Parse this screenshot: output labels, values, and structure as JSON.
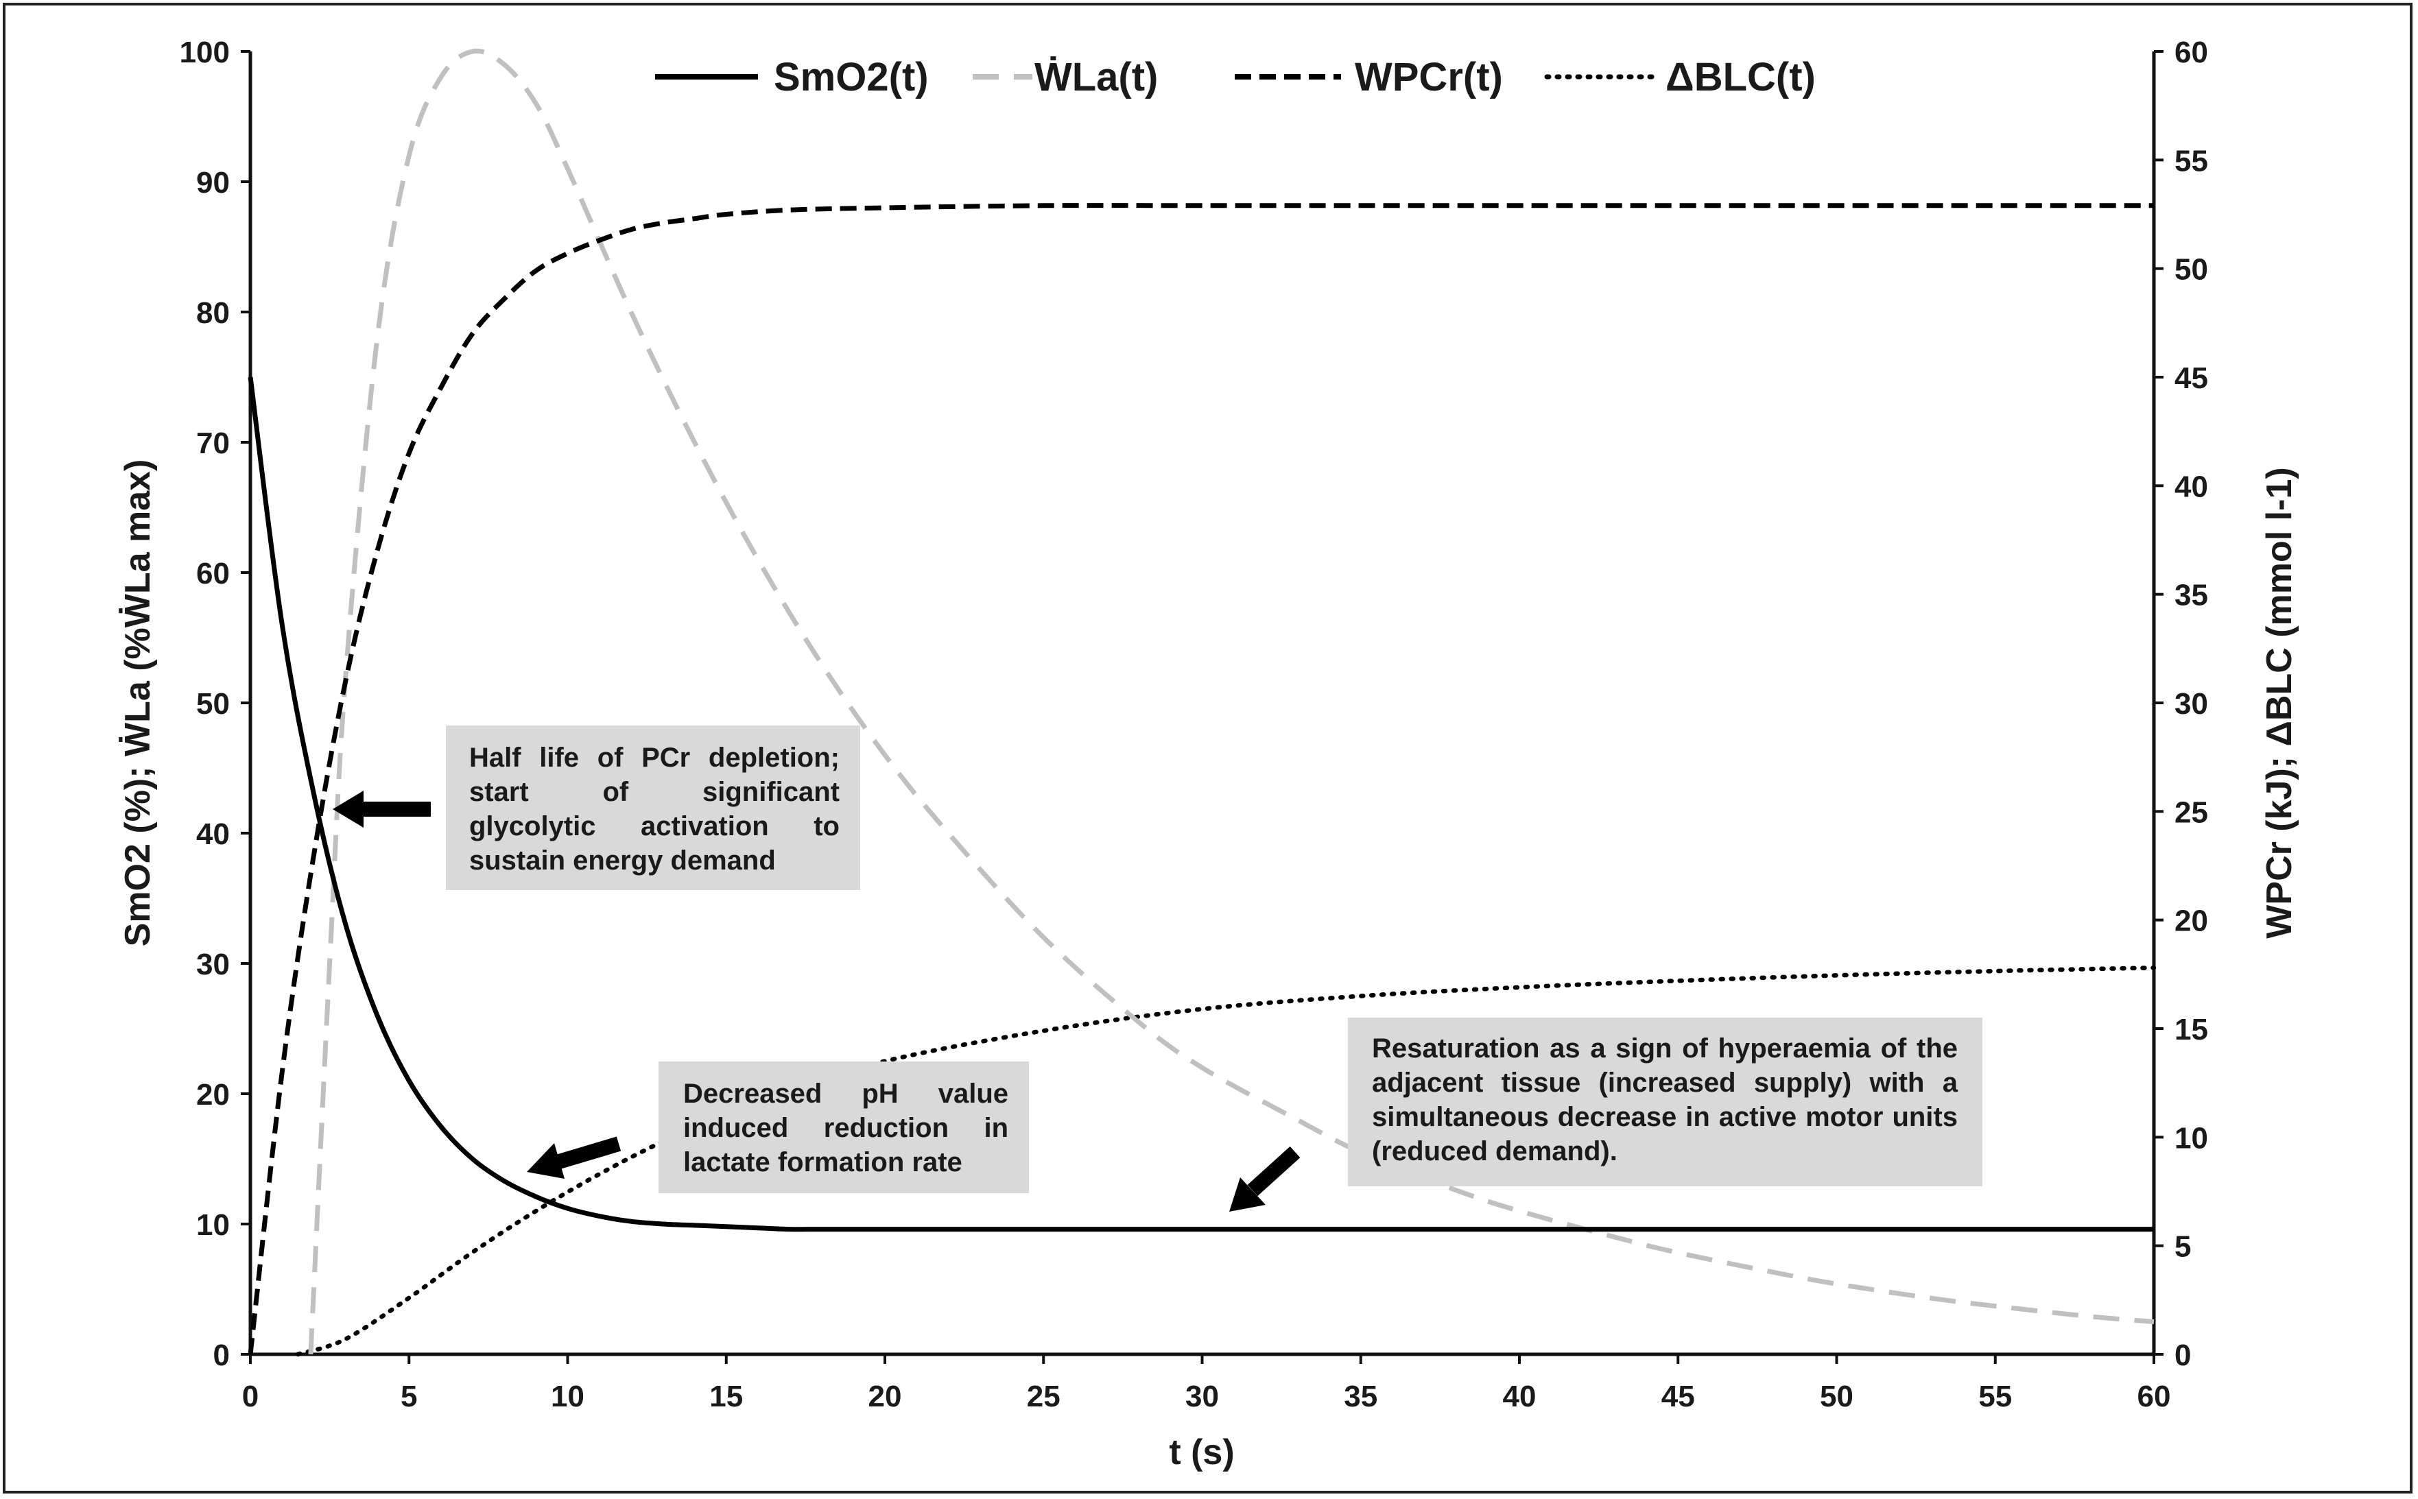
{
  "chart_data": {
    "type": "line",
    "title": "",
    "xlabel": "t (s)",
    "ylabel_left": "SmO2 (%);  ẆLa (%ẆLa max)",
    "ylabel_right": "WPCr (kJ); ΔBLC (mmol l-1)",
    "xlim": [
      0,
      60
    ],
    "ylim_left": [
      0,
      100
    ],
    "ylim_right": [
      0,
      60
    ],
    "x_ticks": [
      "0",
      "5",
      "10",
      "15",
      "20",
      "25",
      "30",
      "35",
      "40",
      "45",
      "50",
      "55",
      "60"
    ],
    "y_ticks_left": [
      "0",
      "10",
      "20",
      "30",
      "40",
      "50",
      "60",
      "70",
      "80",
      "90",
      "100"
    ],
    "y_ticks_right": [
      "0",
      "5",
      "10",
      "15",
      "20",
      "25",
      "30",
      "35",
      "40",
      "45",
      "50",
      "55",
      "60"
    ],
    "grid": false,
    "legend_position": "top",
    "series": [
      {
        "name": "SmO2(t)",
        "axis": "left",
        "style": "solid",
        "color": "#000000",
        "x": [
          0,
          1,
          2,
          3,
          4,
          5,
          6,
          7,
          8,
          9,
          10,
          11,
          12,
          13,
          14,
          15,
          16,
          17,
          18,
          20,
          22,
          25,
          30,
          40,
          50,
          60
        ],
        "y": [
          75,
          56,
          43,
          33,
          26,
          21,
          17.5,
          15,
          13.3,
          12.1,
          11.2,
          10.6,
          10.2,
          10,
          9.9,
          9.8,
          9.7,
          9.6,
          9.6,
          9.6,
          9.6,
          9.6,
          9.6,
          9.6,
          9.6,
          9.6
        ]
      },
      {
        "name": "ẆLa(t)",
        "axis": "left",
        "style": "long-dash",
        "color": "#c0c0c0",
        "x": [
          1.9,
          2.5,
          3,
          4,
          5,
          6,
          7,
          8,
          9,
          10,
          12,
          14,
          16,
          18,
          20,
          22,
          25,
          28,
          30,
          33,
          35,
          38,
          40,
          43,
          45,
          48,
          50,
          53,
          55,
          58,
          60
        ],
        "y": [
          0,
          30,
          52,
          78,
          92,
          98,
          100,
          99,
          96,
          91,
          80,
          70,
          61,
          53,
          46,
          40,
          32,
          25.5,
          22,
          18,
          15.5,
          12.6,
          11,
          9,
          7.8,
          6.3,
          5.4,
          4.3,
          3.7,
          2.9,
          2.5
        ]
      },
      {
        "name": "WPCr(t)",
        "axis": "right",
        "style": "dash",
        "color": "#000000",
        "x": [
          0,
          1,
          2,
          3,
          4,
          5,
          6,
          7,
          8,
          9,
          10,
          11,
          12,
          13,
          14,
          15,
          17,
          20,
          25,
          30,
          40,
          50,
          60
        ],
        "y": [
          0,
          13,
          23,
          31,
          37,
          41.5,
          44.5,
          47,
          48.6,
          49.9,
          50.7,
          51.3,
          51.8,
          52.1,
          52.3,
          52.5,
          52.7,
          52.8,
          52.9,
          52.9,
          52.9,
          52.9,
          52.9
        ]
      },
      {
        "name": "ΔBLC(t)",
        "axis": "right",
        "style": "dotted",
        "color": "#000000",
        "x": [
          1.5,
          3,
          5,
          7,
          9,
          11,
          13,
          15,
          17,
          20,
          25,
          30,
          35,
          40,
          45,
          50,
          55,
          60
        ],
        "y": [
          0,
          0.7,
          2.6,
          4.7,
          6.6,
          8.3,
          9.8,
          11.1,
          12.1,
          13.5,
          14.9,
          15.9,
          16.5,
          16.9,
          17.2,
          17.45,
          17.65,
          17.8
        ]
      }
    ],
    "annotations": [
      {
        "text": "Half life of PCr depletion; start of significant glycolytic activation to sustain energy demand"
      },
      {
        "text": "Decreased pH value induced reduction in lactate formation rate"
      },
      {
        "text": "Resaturation as a sign of hyperaemia of the adjacent tissue (increased supply) with a simultaneous decrease in active motor units (reduced demand)."
      }
    ]
  }
}
